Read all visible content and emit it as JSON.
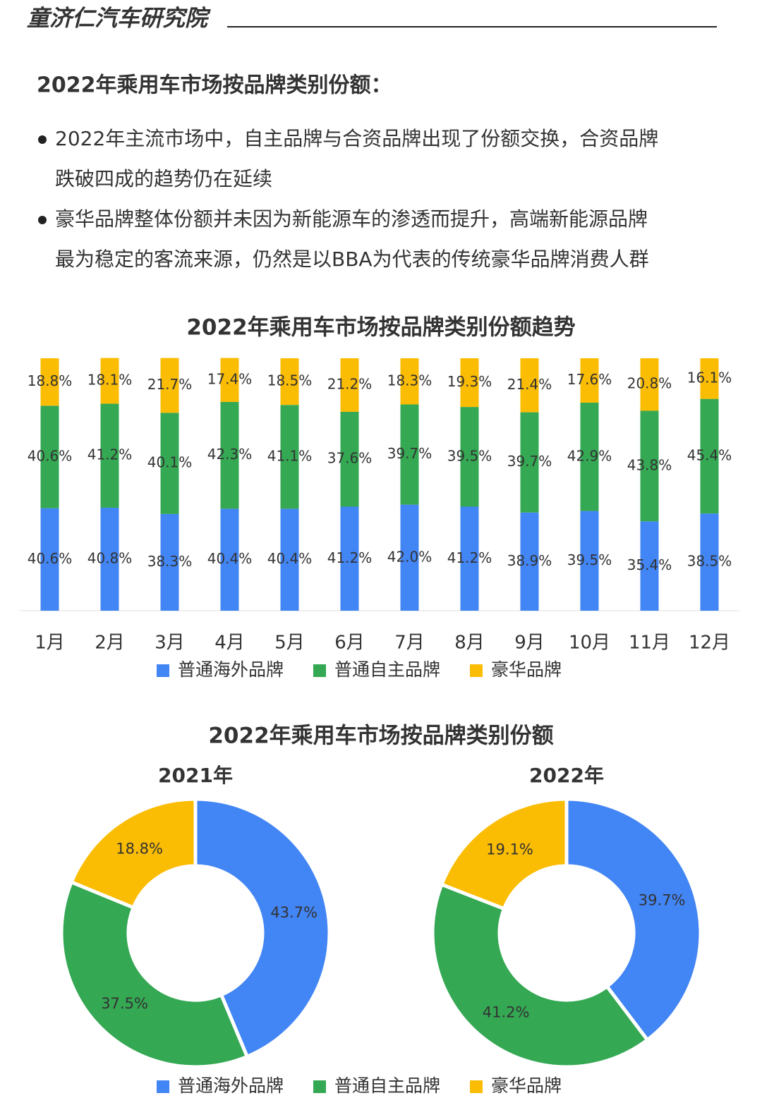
{
  "header": {
    "brand": "童济仁汽车研究院"
  },
  "heading": "2022年乘用车市场按品牌类别份额：",
  "bullets": [
    [
      "2022年主流市场中，自主品牌与合资品牌出现了份额交换，合资品牌",
      "跌破四成的趋势仍在延续"
    ],
    [
      "豪华品牌整体份额并未因为新能源车的渗透而提升，高端新能源品牌",
      "最为稳定的客流来源，仍然是以BBA为代表的传统豪华品牌消费人群"
    ]
  ],
  "chart_data": [
    {
      "type": "stacked_bar",
      "title": "2022年乘用车市场按品牌类别份额趋势",
      "ylim": [
        0,
        100
      ],
      "categories": [
        "1月",
        "2月",
        "3月",
        "4月",
        "5月",
        "6月",
        "7月",
        "8月",
        "9月",
        "10月",
        "11月",
        "12月"
      ],
      "series": [
        {
          "name": "普通海外品牌",
          "color": "#4285f4",
          "values": [
            40.6,
            40.8,
            38.3,
            40.4,
            40.4,
            41.2,
            42.0,
            41.2,
            38.9,
            39.5,
            35.4,
            38.5
          ],
          "value_labels": [
            "40.6%",
            "40.8%",
            "38.3%",
            "40.4%",
            "40.4%",
            "41.2%",
            "42.0%",
            "41.2%",
            "38.9%",
            "39.5%",
            "35.4%",
            "38.5%"
          ]
        },
        {
          "name": "普通自主品牌",
          "color": "#34a853",
          "values": [
            40.6,
            41.2,
            40.1,
            42.3,
            41.1,
            37.6,
            39.7,
            39.5,
            39.7,
            42.9,
            43.8,
            45.4
          ],
          "value_labels": [
            "40.6%",
            "41.2%",
            "40.1%",
            "42.3%",
            "41.1%",
            "37.6%",
            "39.7%",
            "39.5%",
            "39.7%",
            "42.9%",
            "43.8%",
            "45.4%"
          ]
        },
        {
          "name": "豪华品牌",
          "color": "#fbbc04",
          "values": [
            18.8,
            18.1,
            21.7,
            17.4,
            18.5,
            21.2,
            18.3,
            19.3,
            21.4,
            17.6,
            20.8,
            16.1
          ],
          "value_labels": [
            "18.8%",
            "18.1%",
            "21.7%",
            "17.4%",
            "18.5%",
            "21.2%",
            "18.3%",
            "19.3%",
            "21.4%",
            "17.6%",
            "20.8%",
            "16.1%"
          ]
        }
      ]
    },
    {
      "type": "donut",
      "title": "2022年乘用车市场按品牌类别份额",
      "categories": [
        "普通海外品牌",
        "普通自主品牌",
        "豪华品牌"
      ],
      "colors": [
        "#4285f4",
        "#34a853",
        "#fbbc04"
      ],
      "pies": [
        {
          "title": "2021年",
          "values": [
            43.7,
            37.5,
            18.8
          ],
          "value_labels": [
            "43.7%",
            "37.5%",
            "18.8%"
          ]
        },
        {
          "title": "2022年",
          "values": [
            39.7,
            41.2,
            19.1
          ],
          "value_labels": [
            "39.7%",
            "41.2%",
            "19.1%"
          ]
        }
      ]
    }
  ]
}
